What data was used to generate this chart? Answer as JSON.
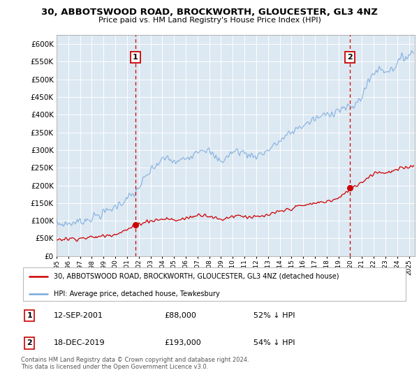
{
  "title": "30, ABBOTSWOOD ROAD, BROCKWORTH, GLOUCESTER, GL3 4NZ",
  "subtitle": "Price paid vs. HM Land Registry's House Price Index (HPI)",
  "ylabel_ticks": [
    "£0",
    "£50K",
    "£100K",
    "£150K",
    "£200K",
    "£250K",
    "£300K",
    "£350K",
    "£400K",
    "£450K",
    "£500K",
    "£550K",
    "£600K"
  ],
  "ytick_values": [
    0,
    50000,
    100000,
    150000,
    200000,
    250000,
    300000,
    350000,
    400000,
    450000,
    500000,
    550000,
    600000
  ],
  "ylim": [
    0,
    625000
  ],
  "xlim_start": 1995.0,
  "xlim_end": 2025.5,
  "hpi_color": "#7aaadd",
  "price_color": "#cc0000",
  "bg_color": "#dce8f2",
  "grid_color": "#ffffff",
  "transaction1_date": 2001.71,
  "transaction1_price": 88000,
  "transaction2_date": 2019.96,
  "transaction2_price": 193000,
  "legend_line1": "30, ABBOTSWOOD ROAD, BROCKWORTH, GLOUCESTER, GL3 4NZ (detached house)",
  "legend_line2": "HPI: Average price, detached house, Tewkesbury",
  "t1_text": "12-SEP-2001",
  "t1_price_text": "£88,000",
  "t1_hpi_text": "52% ↓ HPI",
  "t2_text": "18-DEC-2019",
  "t2_price_text": "£193,000",
  "t2_hpi_text": "54% ↓ HPI",
  "footnote": "Contains HM Land Registry data © Crown copyright and database right 2024.\nThis data is licensed under the Open Government Licence v3.0."
}
